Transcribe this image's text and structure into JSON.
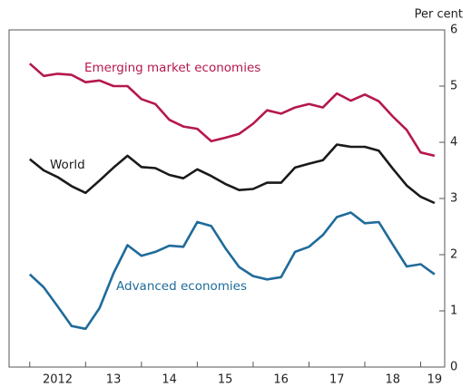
{
  "chart_data": {
    "type": "line",
    "y_axis_label": "Per cent",
    "x": [
      2012,
      2012.25,
      2012.5,
      2012.75,
      2013,
      2013.25,
      2013.5,
      2013.75,
      2014,
      2014.25,
      2014.5,
      2014.75,
      2015,
      2015.25,
      2015.5,
      2015.75,
      2016,
      2016.25,
      2016.5,
      2016.75,
      2017,
      2017.25,
      2017.5,
      2017.75,
      2018,
      2018.25,
      2018.5,
      2018.75,
      2019,
      2019.25
    ],
    "xlim": [
      2011.63,
      2019.43
    ],
    "xticks": [
      {
        "value": 2012.5,
        "label": "2012"
      },
      {
        "value": 2013.5,
        "label": "13"
      },
      {
        "value": 2014.5,
        "label": "14"
      },
      {
        "value": 2015.5,
        "label": "15"
      },
      {
        "value": 2016.5,
        "label": "16"
      },
      {
        "value": 2017.5,
        "label": "17"
      },
      {
        "value": 2018.5,
        "label": "18"
      },
      {
        "value": 2019.25,
        "label": "19"
      }
    ],
    "x_minor_ticks": [
      2012,
      2013,
      2014,
      2015,
      2016,
      2017,
      2018,
      2019
    ],
    "ylim": [
      0,
      6
    ],
    "yticks": [
      0,
      1,
      2,
      3,
      4,
      5,
      6
    ],
    "y_axis_side": "right",
    "grid": false,
    "series": [
      {
        "name": "Emerging market economies",
        "color": "#b5174f",
        "values": [
          5.4,
          5.18,
          5.22,
          5.2,
          5.07,
          5.1,
          5.0,
          5.0,
          4.77,
          4.68,
          4.4,
          4.28,
          4.24,
          4.02,
          4.08,
          4.15,
          4.33,
          4.57,
          4.51,
          4.62,
          4.68,
          4.62,
          4.87,
          4.74,
          4.85,
          4.73,
          4.46,
          4.22,
          3.82,
          3.76
        ]
      },
      {
        "name": "World",
        "color": "#1a1a1a",
        "values": [
          3.7,
          3.5,
          3.38,
          3.22,
          3.1,
          3.32,
          3.55,
          3.76,
          3.56,
          3.54,
          3.42,
          3.36,
          3.52,
          3.4,
          3.26,
          3.15,
          3.17,
          3.28,
          3.28,
          3.55,
          3.62,
          3.68,
          3.96,
          3.92,
          3.92,
          3.85,
          3.53,
          3.23,
          3.03,
          2.92
        ]
      },
      {
        "name": "Advanced economies",
        "color": "#1f6b9a",
        "values": [
          1.65,
          1.42,
          1.08,
          0.73,
          0.68,
          1.05,
          1.67,
          2.17,
          1.98,
          2.05,
          2.16,
          2.14,
          2.58,
          2.51,
          2.12,
          1.78,
          1.62,
          1.56,
          1.6,
          2.05,
          2.14,
          2.35,
          2.67,
          2.75,
          2.56,
          2.58,
          2.18,
          1.79,
          1.83,
          1.65
        ]
      }
    ]
  }
}
